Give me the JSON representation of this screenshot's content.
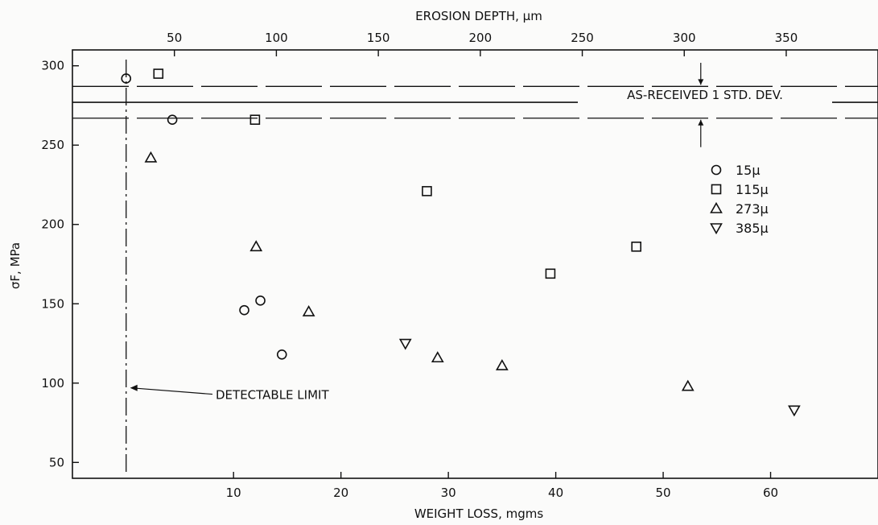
{
  "chart_data": {
    "type": "scatter",
    "xlabel": "WEIGHT LOSS, mgms",
    "x2label": "EROSION DEPTH, μm",
    "ylabel": "σF, MPa",
    "xlim": [
      -5,
      70
    ],
    "x2lim": [
      0,
      395
    ],
    "ylim": [
      40,
      310
    ],
    "xticks": [
      10,
      20,
      30,
      40,
      50,
      60
    ],
    "x2ticks": [
      50,
      100,
      150,
      200,
      250,
      300,
      350
    ],
    "yticks": [
      50,
      100,
      150,
      200,
      250,
      300
    ],
    "grid": false,
    "legend_position": "right",
    "series": [
      {
        "name": "15μ",
        "marker": "circle",
        "points": [
          [
            0,
            292
          ],
          [
            4.3,
            266
          ],
          [
            11,
            146
          ],
          [
            12.5,
            152
          ],
          [
            14.5,
            118
          ]
        ]
      },
      {
        "name": "115μ",
        "marker": "square",
        "points": [
          [
            3,
            295
          ],
          [
            12,
            266
          ],
          [
            28,
            221
          ],
          [
            39.5,
            169
          ],
          [
            47.5,
            186
          ]
        ]
      },
      {
        "name": "273μ",
        "marker": "triangle-up",
        "points": [
          [
            2.3,
            242
          ],
          [
            12.1,
            186
          ],
          [
            17,
            145
          ],
          [
            29,
            116
          ],
          [
            35,
            111
          ],
          [
            52.3,
            98
          ]
        ]
      },
      {
        "name": "385μ",
        "marker": "triangle-down",
        "points": [
          [
            26,
            125
          ],
          [
            62.2,
            83
          ]
        ]
      }
    ],
    "reference_lines": {
      "as_received_mean": 277,
      "std_dev_upper": 287,
      "std_dev_lower": 267,
      "label": "AS-RECEIVED 1 STD. DEV."
    },
    "detectable_limit": {
      "x": 0,
      "label": "DETECTABLE LIMIT"
    }
  }
}
